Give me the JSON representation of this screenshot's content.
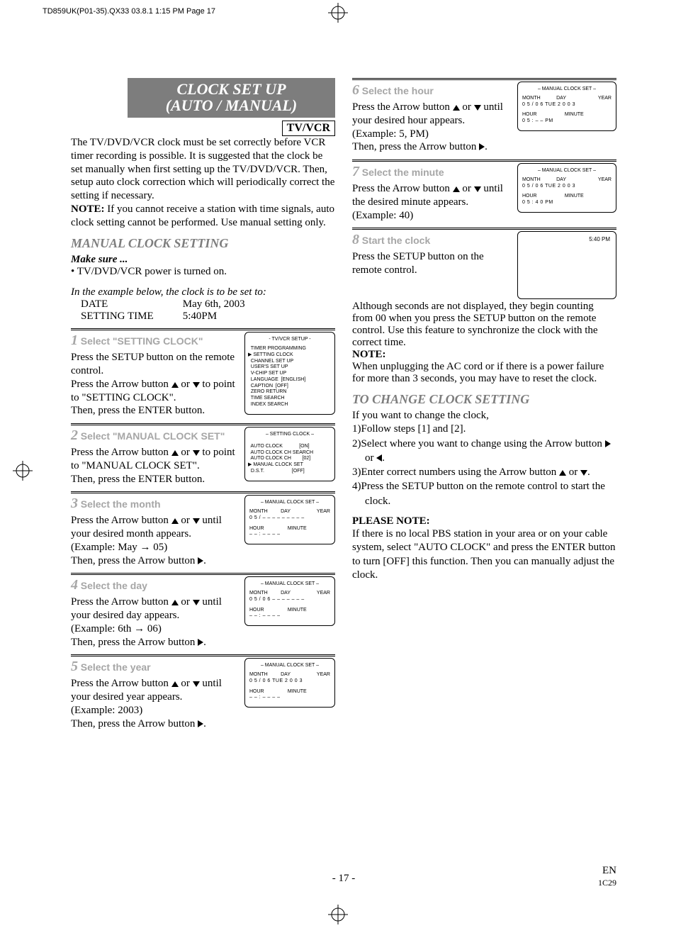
{
  "print_header": "TD859UK(P01-35).QX33  03.8.1 1:15 PM  Page 17",
  "title_l1": "CLOCK SET UP",
  "title_l2": "(AUTO / MANUAL)",
  "tvvcr": "TV/VCR",
  "intro": "The TV/DVD/VCR clock must be set correctly before VCR timer recording is possible. It is suggested that the clock be set manually when first setting up the TV/DVD/VCR. Then, setup auto clock correction which will periodically correct the setting if necessary.",
  "intro_note_label": "NOTE:",
  "intro_note": " If you cannot receive a station with time signals, auto clock setting cannot be performed. Use manual setting only.",
  "manual_h": "MANUAL CLOCK SETTING",
  "make_sure": "Make sure ...",
  "bullet1": "• TV/DVD/VCR power is turned on.",
  "example_intro": "In the example below, the clock is to be set to:",
  "ex_date_l": "DATE",
  "ex_date_v": "May 6th, 2003",
  "ex_time_l": "SETTING TIME",
  "ex_time_v": "5:40PM",
  "s1_num": "1",
  "s1_title": "Select \"SETTING CLOCK\"",
  "s1_body1": "Press the SETUP button on the remote control.",
  "s1_body2a": "Press the Arrow button ",
  "s1_body2b": " or ",
  "s1_body2c": " to point to \"SETTING CLOCK\".",
  "s1_body3": "Then, press the ENTER button.",
  "osd1_title": "- TV/VCR SETUP -",
  "osd1_lines": [
    "  TIMER PROGRAMMING",
    "▶ SETTING CLOCK",
    "  CHANNEL SET UP",
    "  USER'S SET UP",
    "  V-CHIP SET UP",
    "  LANGUAGE  [ENGLISH]",
    "  CAPTION  [OFF]",
    "  ZERO RETURN",
    "  TIME SEARCH",
    "  INDEX SEARCH"
  ],
  "s2_num": "2",
  "s2_title": "Select \"MANUAL CLOCK SET\"",
  "s2_body1a": "Press the Arrow button ",
  "s2_body1b": " or ",
  "s2_body1c": " to point to \"MANUAL CLOCK SET\".",
  "s2_body2": "Then, press the ENTER button.",
  "osd2_title": "– SETTING CLOCK –",
  "osd2_lines": [
    "  AUTO CLOCK            [ON]",
    "  AUTO CLOCK CH SEARCH",
    "  AUTO CLOCK CH        [02]",
    "▶ MANUAL CLOCK SET",
    "  D.S.T.                    [OFF]"
  ],
  "s3_num": "3",
  "s3_title": "Select the month",
  "s3_body1a": "Press the Arrow button ",
  "s3_body1b": " or ",
  "s3_body1c": " until your desired month appears.",
  "s3_body2": "(Example: May → 05)",
  "s3_body3a": "Then, press the Arrow button ",
  "s3_body3b": ".",
  "osd_mcs_title": "– MANUAL CLOCK SET –",
  "osd_labels_mdy": [
    "MONTH",
    "DAY",
    "",
    "YEAR"
  ],
  "osd_labels_hm": [
    "HOUR",
    "MINUTE"
  ],
  "osd3_vals_mdy": "0 5 / – –  – – –  – – – –",
  "osd3_vals_hm": "– –  :  – –  – –",
  "s4_num": "4",
  "s4_title": "Select the day",
  "s4_body1a": "Press the Arrow button ",
  "s4_body1b": " or ",
  "s4_body1c": " until your desired day appears.",
  "s4_body2": "(Example: 6th → 06)",
  "s4_body3a": "Then, press the Arrow button ",
  "s4_body3b": ".",
  "osd4_vals_mdy": "0 5  / 0 6 – – –  – – – –",
  "osd4_vals_hm": "– –  :  – –  – –",
  "s5_num": "5",
  "s5_title": "Select the year",
  "s5_body1a": "Press the Arrow button ",
  "s5_body1b": " or ",
  "s5_body1c": " until your desired year appears.",
  "s5_body2": "(Example: 2003)",
  "s5_body3a": "Then, press the Arrow button ",
  "s5_body3b": ".",
  "osd5_vals_mdy": "0 5 / 0 6  TUE  2 0 0 3",
  "osd5_vals_hm": "– –  :  – –  – –",
  "s6_num": "6",
  "s6_title": "Select the hour",
  "s6_body1a": "Press the Arrow button ",
  "s6_body1b": " or ",
  "s6_body1c": " until your desired hour appears.",
  "s6_body2": "(Example: 5, PM)",
  "s6_body3a": "Then, press the Arrow button ",
  "s6_body3b": ".",
  "osd6_vals_mdy": "0 5  /  0 6   TUE   2 0 0 3",
  "osd6_vals_hm": "0 5  :  – –  PM",
  "s7_num": "7",
  "s7_title": "Select the minute",
  "s7_body1a": "Press the Arrow button ",
  "s7_body1b": " or ",
  "s7_body1c": " until the desired minute appears.",
  "s7_body2": "(Example: 40)",
  "osd7_vals_mdy": "0 5  /  0 6   TUE   2 0 0 3",
  "osd7_vals_hm": "0 5  :  4 0  PM",
  "s8_num": "8",
  "s8_title": "Start the clock",
  "s8_body1": "Press the SETUP button on the remote control.",
  "s8_body2": "Although seconds are not displayed, they begin counting from 00 when you press the SETUP button on the remote control. Use this feature to synchronize the clock with the correct time.",
  "s8_note_l": "NOTE:",
  "s8_note": "When unplugging the AC cord or if there is a power failure for more than 3 seconds, you may have to reset the clock.",
  "osd8_time": "5:40 PM",
  "change_h": "TO CHANGE CLOCK SETTING",
  "change_intro": "If you want to change the clock,",
  "change_1": "1)Follow steps [1] and [2].",
  "change_2a": "2)Select where you want to change using the Arrow button ",
  "change_2b": " or ",
  "change_2c": ".",
  "change_3a": "3)Enter correct numbers using the Arrow button ",
  "change_3b": " or ",
  "change_3c": ".",
  "change_4": "4)Press the SETUP button on the remote control to start the clock.",
  "pnote_h": "PLEASE NOTE:",
  "pnote": "If there is no local PBS station in your area or on your cable system, select \"AUTO CLOCK\" and press the ENTER button to turn [OFF] this function. Then you can manually adjust the clock.",
  "page_num": "- 17 -",
  "code1": "EN",
  "code2": "1C29"
}
